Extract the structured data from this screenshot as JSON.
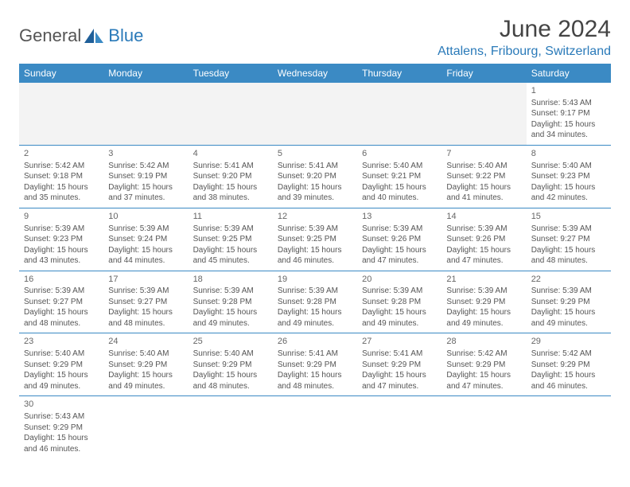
{
  "logo": {
    "general": "General",
    "blue": "Blue"
  },
  "title": "June 2024",
  "location": "Attalens, Fribourg, Switzerland",
  "colors": {
    "header_bg": "#3b8ac4",
    "header_text": "#ffffff",
    "accent": "#2a7ab9",
    "empty_bg": "#f3f3f3",
    "body_text": "#555555",
    "title_text": "#444444"
  },
  "typography": {
    "title_fontsize": 30,
    "location_fontsize": 16,
    "header_fontsize": 12,
    "cell_fontsize": 10
  },
  "dayHeaders": [
    "Sunday",
    "Monday",
    "Tuesday",
    "Wednesday",
    "Thursday",
    "Friday",
    "Saturday"
  ],
  "weeks": [
    [
      null,
      null,
      null,
      null,
      null,
      null,
      {
        "day": "1",
        "sunrise": "Sunrise: 5:43 AM",
        "sunset": "Sunset: 9:17 PM",
        "daylight1": "Daylight: 15 hours",
        "daylight2": "and 34 minutes."
      }
    ],
    [
      {
        "day": "2",
        "sunrise": "Sunrise: 5:42 AM",
        "sunset": "Sunset: 9:18 PM",
        "daylight1": "Daylight: 15 hours",
        "daylight2": "and 35 minutes."
      },
      {
        "day": "3",
        "sunrise": "Sunrise: 5:42 AM",
        "sunset": "Sunset: 9:19 PM",
        "daylight1": "Daylight: 15 hours",
        "daylight2": "and 37 minutes."
      },
      {
        "day": "4",
        "sunrise": "Sunrise: 5:41 AM",
        "sunset": "Sunset: 9:20 PM",
        "daylight1": "Daylight: 15 hours",
        "daylight2": "and 38 minutes."
      },
      {
        "day": "5",
        "sunrise": "Sunrise: 5:41 AM",
        "sunset": "Sunset: 9:20 PM",
        "daylight1": "Daylight: 15 hours",
        "daylight2": "and 39 minutes."
      },
      {
        "day": "6",
        "sunrise": "Sunrise: 5:40 AM",
        "sunset": "Sunset: 9:21 PM",
        "daylight1": "Daylight: 15 hours",
        "daylight2": "and 40 minutes."
      },
      {
        "day": "7",
        "sunrise": "Sunrise: 5:40 AM",
        "sunset": "Sunset: 9:22 PM",
        "daylight1": "Daylight: 15 hours",
        "daylight2": "and 41 minutes."
      },
      {
        "day": "8",
        "sunrise": "Sunrise: 5:40 AM",
        "sunset": "Sunset: 9:23 PM",
        "daylight1": "Daylight: 15 hours",
        "daylight2": "and 42 minutes."
      }
    ],
    [
      {
        "day": "9",
        "sunrise": "Sunrise: 5:39 AM",
        "sunset": "Sunset: 9:23 PM",
        "daylight1": "Daylight: 15 hours",
        "daylight2": "and 43 minutes."
      },
      {
        "day": "10",
        "sunrise": "Sunrise: 5:39 AM",
        "sunset": "Sunset: 9:24 PM",
        "daylight1": "Daylight: 15 hours",
        "daylight2": "and 44 minutes."
      },
      {
        "day": "11",
        "sunrise": "Sunrise: 5:39 AM",
        "sunset": "Sunset: 9:25 PM",
        "daylight1": "Daylight: 15 hours",
        "daylight2": "and 45 minutes."
      },
      {
        "day": "12",
        "sunrise": "Sunrise: 5:39 AM",
        "sunset": "Sunset: 9:25 PM",
        "daylight1": "Daylight: 15 hours",
        "daylight2": "and 46 minutes."
      },
      {
        "day": "13",
        "sunrise": "Sunrise: 5:39 AM",
        "sunset": "Sunset: 9:26 PM",
        "daylight1": "Daylight: 15 hours",
        "daylight2": "and 47 minutes."
      },
      {
        "day": "14",
        "sunrise": "Sunrise: 5:39 AM",
        "sunset": "Sunset: 9:26 PM",
        "daylight1": "Daylight: 15 hours",
        "daylight2": "and 47 minutes."
      },
      {
        "day": "15",
        "sunrise": "Sunrise: 5:39 AM",
        "sunset": "Sunset: 9:27 PM",
        "daylight1": "Daylight: 15 hours",
        "daylight2": "and 48 minutes."
      }
    ],
    [
      {
        "day": "16",
        "sunrise": "Sunrise: 5:39 AM",
        "sunset": "Sunset: 9:27 PM",
        "daylight1": "Daylight: 15 hours",
        "daylight2": "and 48 minutes."
      },
      {
        "day": "17",
        "sunrise": "Sunrise: 5:39 AM",
        "sunset": "Sunset: 9:27 PM",
        "daylight1": "Daylight: 15 hours",
        "daylight2": "and 48 minutes."
      },
      {
        "day": "18",
        "sunrise": "Sunrise: 5:39 AM",
        "sunset": "Sunset: 9:28 PM",
        "daylight1": "Daylight: 15 hours",
        "daylight2": "and 49 minutes."
      },
      {
        "day": "19",
        "sunrise": "Sunrise: 5:39 AM",
        "sunset": "Sunset: 9:28 PM",
        "daylight1": "Daylight: 15 hours",
        "daylight2": "and 49 minutes."
      },
      {
        "day": "20",
        "sunrise": "Sunrise: 5:39 AM",
        "sunset": "Sunset: 9:28 PM",
        "daylight1": "Daylight: 15 hours",
        "daylight2": "and 49 minutes."
      },
      {
        "day": "21",
        "sunrise": "Sunrise: 5:39 AM",
        "sunset": "Sunset: 9:29 PM",
        "daylight1": "Daylight: 15 hours",
        "daylight2": "and 49 minutes."
      },
      {
        "day": "22",
        "sunrise": "Sunrise: 5:39 AM",
        "sunset": "Sunset: 9:29 PM",
        "daylight1": "Daylight: 15 hours",
        "daylight2": "and 49 minutes."
      }
    ],
    [
      {
        "day": "23",
        "sunrise": "Sunrise: 5:40 AM",
        "sunset": "Sunset: 9:29 PM",
        "daylight1": "Daylight: 15 hours",
        "daylight2": "and 49 minutes."
      },
      {
        "day": "24",
        "sunrise": "Sunrise: 5:40 AM",
        "sunset": "Sunset: 9:29 PM",
        "daylight1": "Daylight: 15 hours",
        "daylight2": "and 49 minutes."
      },
      {
        "day": "25",
        "sunrise": "Sunrise: 5:40 AM",
        "sunset": "Sunset: 9:29 PM",
        "daylight1": "Daylight: 15 hours",
        "daylight2": "and 48 minutes."
      },
      {
        "day": "26",
        "sunrise": "Sunrise: 5:41 AM",
        "sunset": "Sunset: 9:29 PM",
        "daylight1": "Daylight: 15 hours",
        "daylight2": "and 48 minutes."
      },
      {
        "day": "27",
        "sunrise": "Sunrise: 5:41 AM",
        "sunset": "Sunset: 9:29 PM",
        "daylight1": "Daylight: 15 hours",
        "daylight2": "and 47 minutes."
      },
      {
        "day": "28",
        "sunrise": "Sunrise: 5:42 AM",
        "sunset": "Sunset: 9:29 PM",
        "daylight1": "Daylight: 15 hours",
        "daylight2": "and 47 minutes."
      },
      {
        "day": "29",
        "sunrise": "Sunrise: 5:42 AM",
        "sunset": "Sunset: 9:29 PM",
        "daylight1": "Daylight: 15 hours",
        "daylight2": "and 46 minutes."
      }
    ],
    [
      {
        "day": "30",
        "sunrise": "Sunrise: 5:43 AM",
        "sunset": "Sunset: 9:29 PM",
        "daylight1": "Daylight: 15 hours",
        "daylight2": "and 46 minutes."
      },
      null,
      null,
      null,
      null,
      null,
      null
    ]
  ]
}
